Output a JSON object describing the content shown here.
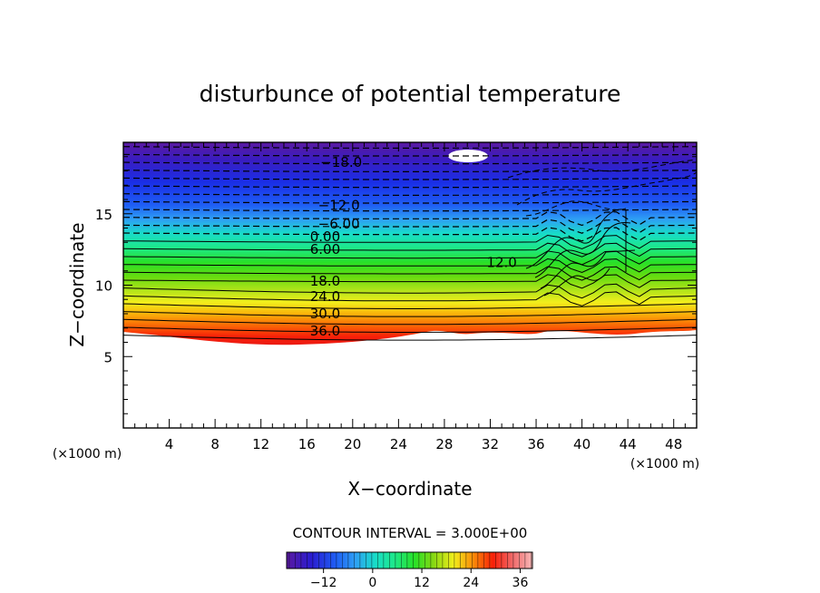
{
  "chart_data": {
    "type": "contour",
    "title": "disturbunce of potential temperature",
    "xlabel": "X−coordinate",
    "ylabel": "Z−coordinate",
    "x_unit_left": "(×1000 m)",
    "x_unit_right": "(×1000 m)",
    "xlim": [
      0,
      50
    ],
    "ylim": [
      0,
      20
    ],
    "x_ticks": [
      4,
      8,
      12,
      16,
      20,
      24,
      28,
      32,
      36,
      40,
      44,
      48
    ],
    "x_tick_labels": [
      "4",
      "8",
      "12",
      "16",
      "20",
      "24",
      "28",
      "32",
      "36",
      "40",
      "44",
      "48"
    ],
    "y_ticks": [
      5,
      10,
      15
    ],
    "y_tick_labels": [
      "5",
      "10",
      "15"
    ],
    "contour_interval_text": "CONTOUR INTERVAL = 3.000E+00",
    "contour_interval": 3,
    "contour_labels": [
      {
        "text": "−18.0",
        "x": 19.0,
        "z": 18.6
      },
      {
        "text": "−12.0",
        "x": 18.8,
        "z": 15.6
      },
      {
        "text": "−6.00",
        "x": 18.8,
        "z": 14.3
      },
      {
        "text": "0.00",
        "x": 17.6,
        "z": 13.4
      },
      {
        "text": "6.00",
        "x": 17.6,
        "z": 12.5
      },
      {
        "text": "18.0",
        "x": 17.6,
        "z": 10.3
      },
      {
        "text": "24.0",
        "x": 17.6,
        "z": 9.2
      },
      {
        "text": "30.0",
        "x": 17.6,
        "z": 8.0
      },
      {
        "text": "36.0",
        "x": 17.6,
        "z": 6.8
      },
      {
        "text": "12.0",
        "x": 33.0,
        "z": 11.6
      }
    ],
    "colorbar": {
      "min": -21,
      "max": 39,
      "ticks": [
        -12,
        0,
        12,
        24,
        36
      ],
      "tick_labels": [
        "−12",
        "0",
        "12",
        "24",
        "36"
      ]
    }
  }
}
